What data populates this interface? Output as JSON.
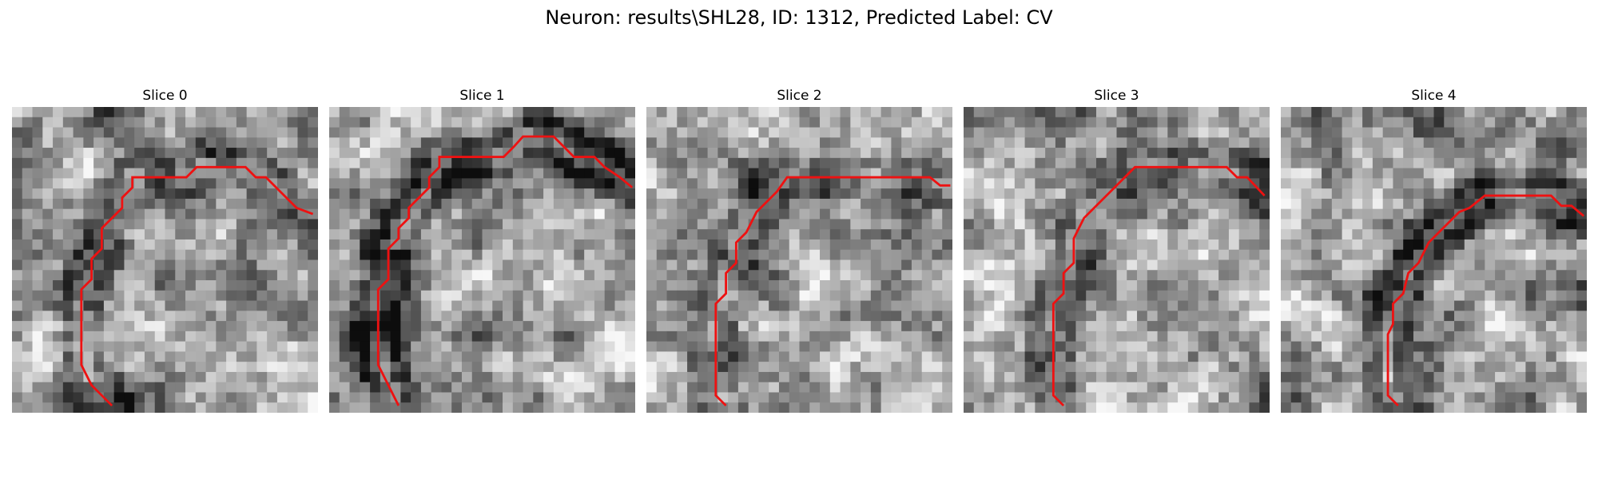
{
  "figure": {
    "title": "Neuron: results\\SHL28, ID: 1312, Predicted Label: CV"
  },
  "colors": {
    "contour": "#ee1111",
    "background": "#ffffff"
  },
  "panels": [
    {
      "title": "Slice 0"
    },
    {
      "title": "Slice 1"
    },
    {
      "title": "Slice 2"
    },
    {
      "title": "Slice 3"
    },
    {
      "title": "Slice 4"
    }
  ]
}
